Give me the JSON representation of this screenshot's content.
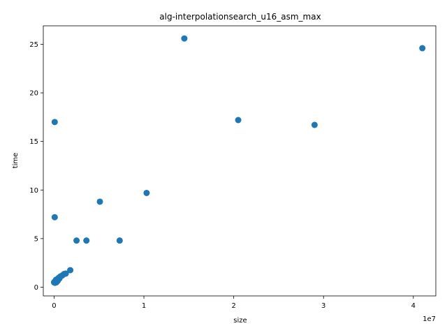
{
  "chart_data": {
    "type": "scatter",
    "title": "alg-interpolationsearch_u16_asm_max",
    "xlabel": "size",
    "ylabel": "time",
    "x_offset_label": "1e7",
    "xlim": [
      -1200000,
      42500000
    ],
    "ylim": [
      -0.9,
      26.9
    ],
    "x_ticks": [
      {
        "value": 0,
        "label": "0"
      },
      {
        "value": 10000000,
        "label": "1"
      },
      {
        "value": 20000000,
        "label": "2"
      },
      {
        "value": 30000000,
        "label": "3"
      },
      {
        "value": 40000000,
        "label": "4"
      }
    ],
    "y_ticks": [
      {
        "value": 0,
        "label": "0"
      },
      {
        "value": 5,
        "label": "5"
      },
      {
        "value": 10,
        "label": "10"
      },
      {
        "value": 15,
        "label": "15"
      },
      {
        "value": 20,
        "label": "20"
      },
      {
        "value": 25,
        "label": "25"
      }
    ],
    "grid": false,
    "marker_color": "#1f77b4",
    "points": [
      {
        "x": 0,
        "y": 0.5
      },
      {
        "x": 50000,
        "y": 0.55
      },
      {
        "x": 100000,
        "y": 0.45
      },
      {
        "x": 150000,
        "y": 0.6
      },
      {
        "x": 200000,
        "y": 0.75
      },
      {
        "x": 250000,
        "y": 0.5
      },
      {
        "x": 300000,
        "y": 0.8
      },
      {
        "x": 400000,
        "y": 0.65
      },
      {
        "x": 500000,
        "y": 0.95
      },
      {
        "x": 600000,
        "y": 0.9
      },
      {
        "x": 700000,
        "y": 1.1
      },
      {
        "x": 900000,
        "y": 1.2
      },
      {
        "x": 1100000,
        "y": 1.35
      },
      {
        "x": 1300000,
        "y": 1.4
      },
      {
        "x": 1800000,
        "y": 1.75
      },
      {
        "x": 2500000,
        "y": 4.8
      },
      {
        "x": 3600000,
        "y": 4.8
      },
      {
        "x": 5100000,
        "y": 8.8
      },
      {
        "x": 7300000,
        "y": 4.8
      },
      {
        "x": 10300000,
        "y": 9.7
      },
      {
        "x": 14500000,
        "y": 25.6
      },
      {
        "x": 20500000,
        "y": 17.2
      },
      {
        "x": 29000000,
        "y": 16.7
      },
      {
        "x": 41000000,
        "y": 24.6
      },
      {
        "x": 70000,
        "y": 17.0
      },
      {
        "x": 70000,
        "y": 7.2
      }
    ]
  }
}
